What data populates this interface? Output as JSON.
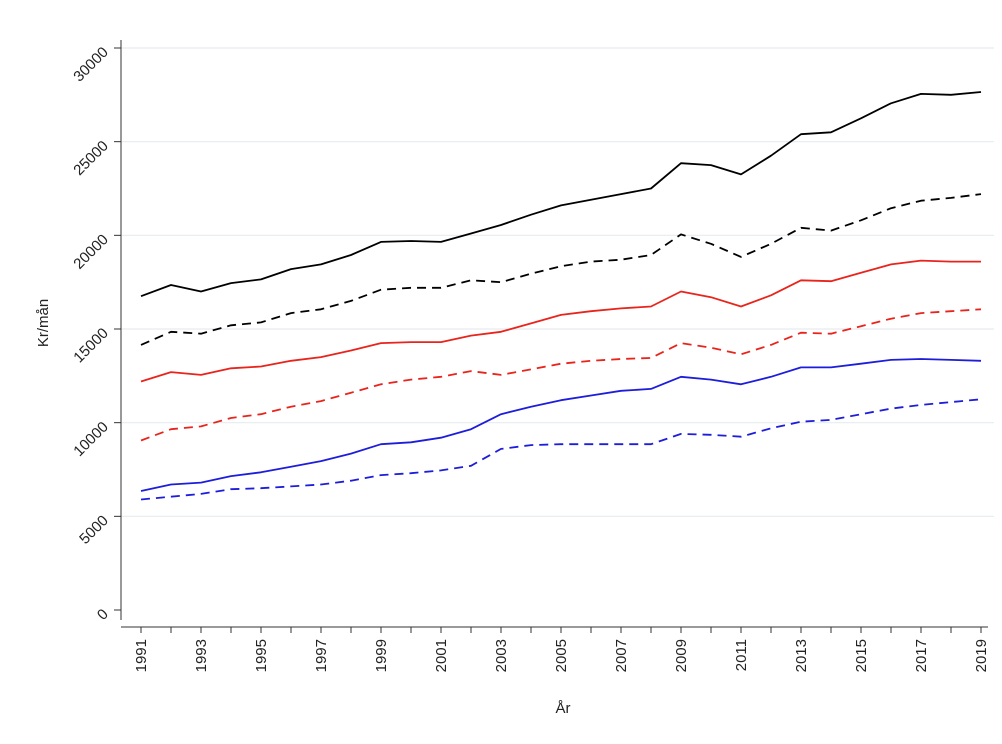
{
  "chart_data": {
    "type": "line",
    "title": "",
    "xlabel": "År",
    "ylabel": "Kr/mån",
    "x": [
      1991,
      1992,
      1993,
      1994,
      1995,
      1996,
      1997,
      1998,
      1999,
      2000,
      2001,
      2002,
      2003,
      2004,
      2005,
      2006,
      2007,
      2008,
      2009,
      2010,
      2011,
      2012,
      2013,
      2014,
      2015,
      2016,
      2017,
      2018,
      2019
    ],
    "x_tick_labels": [
      "1991",
      "1993",
      "1995",
      "1997",
      "1999",
      "2001",
      "2003",
      "2005",
      "2007",
      "2009",
      "2011",
      "2013",
      "2015",
      "2017",
      "2019"
    ],
    "y_tick_labels": [
      "0",
      "5000",
      "10000",
      "15000",
      "20000",
      "25000",
      "30000"
    ],
    "ylim": [
      0,
      30000
    ],
    "grid": true,
    "legend": "none",
    "series": [
      {
        "color": "#000000",
        "dash": "solid",
        "values": [
          16750,
          17350,
          17000,
          17450,
          17650,
          18200,
          18450,
          18950,
          19650,
          19700,
          19650,
          20100,
          20550,
          21100,
          21600,
          21900,
          22200,
          22500,
          23850,
          23750,
          23250,
          24250,
          25400,
          25500,
          26250,
          27050,
          27550,
          27500,
          27650
        ]
      },
      {
        "color": "#000000",
        "dash": "dashed",
        "values": [
          14150,
          14850,
          14750,
          15200,
          15350,
          15850,
          16050,
          16500,
          17100,
          17200,
          17200,
          17600,
          17500,
          17950,
          18350,
          18600,
          18700,
          18950,
          20050,
          19550,
          18850,
          19550,
          20400,
          20250,
          20800,
          21450,
          21850,
          22000,
          22200
        ]
      },
      {
        "color": "#e8241c",
        "dash": "solid",
        "values": [
          12200,
          12700,
          12550,
          12900,
          13000,
          13300,
          13500,
          13850,
          14250,
          14300,
          14300,
          14650,
          14850,
          15300,
          15750,
          15950,
          16100,
          16200,
          17000,
          16700,
          16200,
          16800,
          17600,
          17550,
          18000,
          18450,
          18650,
          18600,
          18600
        ]
      },
      {
        "color": "#e8241c",
        "dash": "dashed",
        "values": [
          9050,
          9650,
          9800,
          10250,
          10450,
          10850,
          11150,
          11600,
          12050,
          12300,
          12450,
          12750,
          12550,
          12850,
          13150,
          13300,
          13400,
          13450,
          14250,
          14000,
          13650,
          14150,
          14800,
          14750,
          15150,
          15550,
          15850,
          15950,
          16050
        ]
      },
      {
        "color": "#1d1ddb",
        "dash": "solid",
        "values": [
          6350,
          6700,
          6800,
          7150,
          7350,
          7650,
          7950,
          8350,
          8850,
          8950,
          9200,
          9650,
          10450,
          10850,
          11200,
          11450,
          11700,
          11800,
          12450,
          12300,
          12050,
          12450,
          12950,
          12950,
          13150,
          13350,
          13400,
          13350,
          13300
        ]
      },
      {
        "color": "#1d1ddb",
        "dash": "dashed",
        "values": [
          5900,
          6050,
          6200,
          6450,
          6500,
          6600,
          6700,
          6900,
          7200,
          7300,
          7450,
          7700,
          8600,
          8800,
          8850,
          8850,
          8850,
          8850,
          9400,
          9350,
          9250,
          9700,
          10050,
          10150,
          10450,
          10750,
          10950,
          11100,
          11250
        ]
      }
    ]
  }
}
